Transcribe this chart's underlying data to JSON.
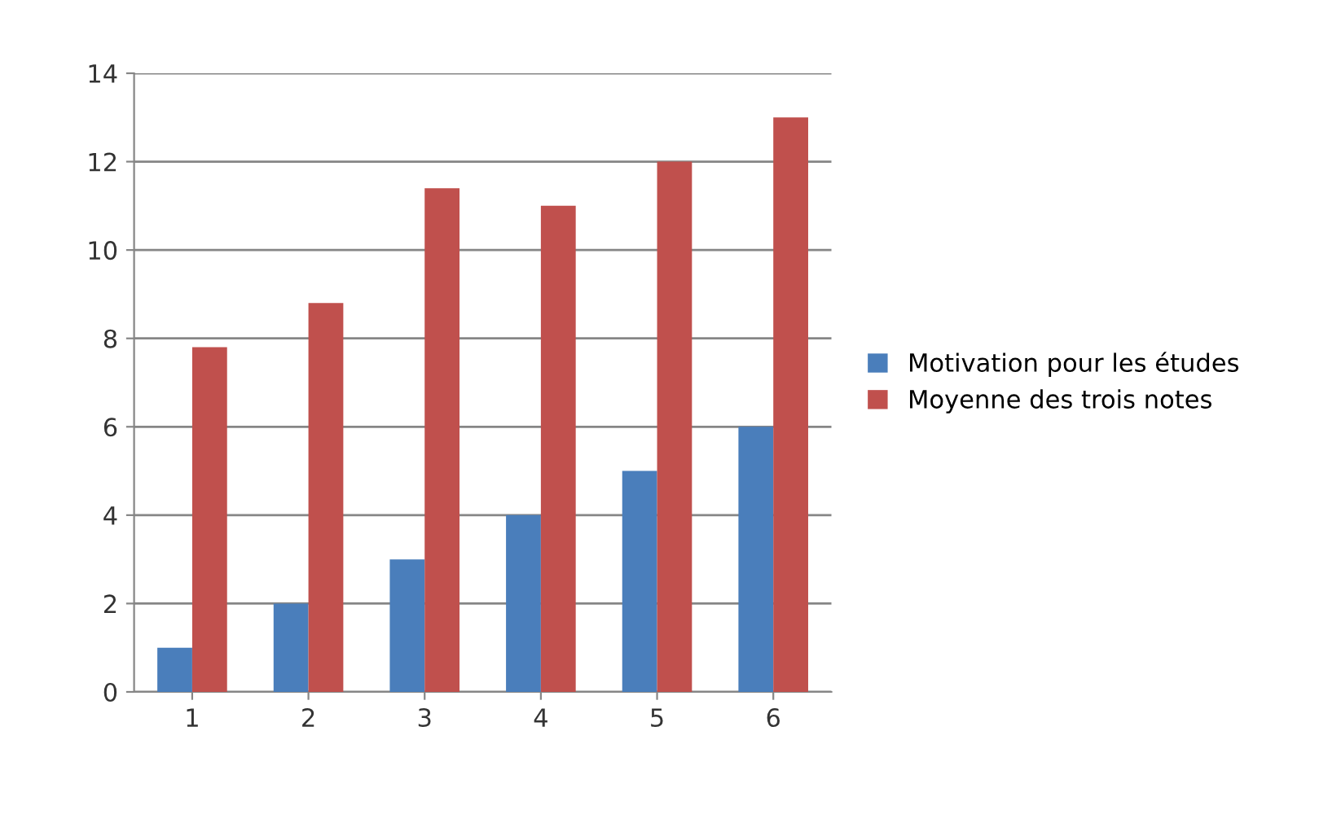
{
  "chart_data": {
    "type": "bar",
    "categories": [
      "1",
      "2",
      "3",
      "4",
      "5",
      "6"
    ],
    "series": [
      {
        "name": "Motivation pour les études",
        "color": "#4a7ebb",
        "values": [
          1,
          2,
          3,
          4,
          5,
          6
        ]
      },
      {
        "name": "Moyenne des trois notes",
        "color": "#c0504d",
        "values": [
          7.8,
          8.8,
          11.4,
          11.0,
          12.0,
          13.0
        ]
      }
    ],
    "ylim": [
      0,
      14
    ],
    "yticks": [
      0,
      2,
      4,
      6,
      8,
      10,
      12,
      14
    ],
    "grid": "y",
    "legend": "right"
  }
}
